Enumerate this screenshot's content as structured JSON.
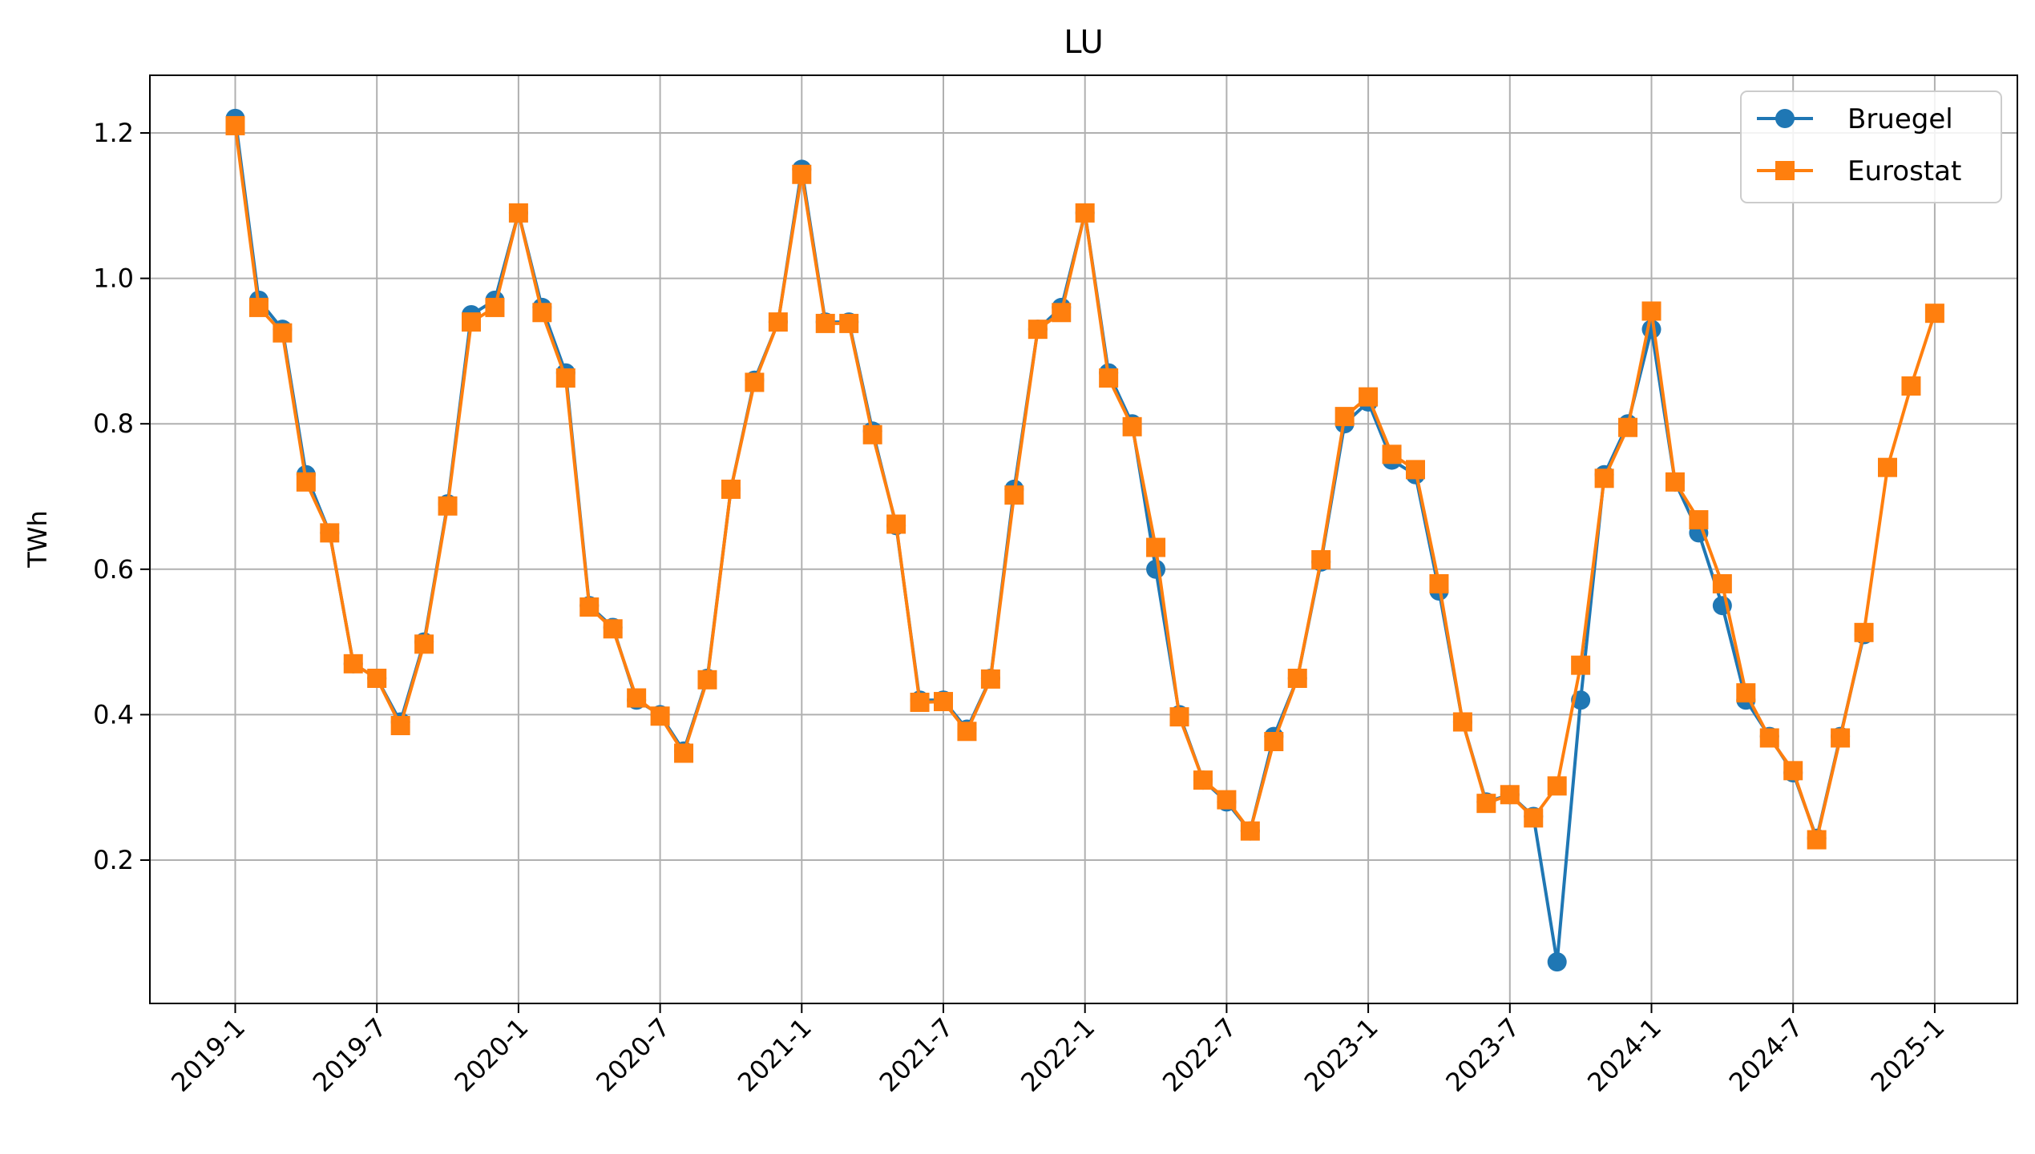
{
  "chart_data": {
    "type": "line",
    "title": "LU",
    "xlabel": "",
    "ylabel": "TWh",
    "ylim": [
      0.0,
      1.28
    ],
    "yticks": [
      0.2,
      0.4,
      0.6,
      0.8,
      1.0,
      1.2
    ],
    "x_tick_labels": [
      "2019-1",
      "2019-7",
      "2020-1",
      "2020-7",
      "2021-1",
      "2021-7",
      "2022-1",
      "2022-7",
      "2023-1",
      "2023-7",
      "2024-1",
      "2024-7",
      "2025-1"
    ],
    "x_start": "2019-1",
    "grid": true,
    "legend_position": "top-right",
    "series": [
      {
        "name": "Bruegel",
        "color": "#1f77b4",
        "marker": "circle",
        "values": [
          1.22,
          0.97,
          0.93,
          0.73,
          0.65,
          0.47,
          0.45,
          0.39,
          0.5,
          0.69,
          0.95,
          0.97,
          1.09,
          0.96,
          0.87,
          0.55,
          0.52,
          0.42,
          0.4,
          0.35,
          0.45,
          0.71,
          0.86,
          0.94,
          1.15,
          0.94,
          0.94,
          0.79,
          0.66,
          0.42,
          0.42,
          0.38,
          0.45,
          0.71,
          0.93,
          0.96,
          1.09,
          0.87,
          0.8,
          0.6,
          0.4,
          0.31,
          0.28,
          0.24,
          0.37,
          0.45,
          0.61,
          0.8,
          0.83,
          0.75,
          0.73,
          0.57,
          0.39,
          0.28,
          0.29,
          0.26,
          0.06,
          0.42,
          0.73,
          0.8,
          0.93,
          0.72,
          0.65,
          0.55,
          0.42,
          0.37,
          0.32,
          0.23,
          0.37,
          0.51
        ]
      },
      {
        "name": "Eurostat",
        "color": "#ff7f0e",
        "marker": "square",
        "values": [
          1.21,
          0.96,
          0.925,
          0.72,
          0.65,
          0.47,
          0.45,
          0.385,
          0.497,
          0.687,
          0.94,
          0.96,
          1.09,
          0.953,
          0.863,
          0.548,
          0.518,
          0.423,
          0.398,
          0.347,
          0.448,
          0.71,
          0.857,
          0.94,
          1.143,
          0.938,
          0.938,
          0.785,
          0.662,
          0.417,
          0.418,
          0.377,
          0.449,
          0.702,
          0.93,
          0.953,
          1.09,
          0.863,
          0.796,
          0.63,
          0.397,
          0.31,
          0.283,
          0.24,
          0.363,
          0.45,
          0.613,
          0.81,
          0.837,
          0.758,
          0.737,
          0.58,
          0.39,
          0.278,
          0.29,
          0.258,
          0.302,
          0.468,
          0.725,
          0.795,
          0.955,
          0.72,
          0.668,
          0.58,
          0.43,
          0.368,
          0.323,
          0.228,
          0.368,
          0.513,
          0.74,
          0.852,
          0.952
        ]
      }
    ]
  }
}
